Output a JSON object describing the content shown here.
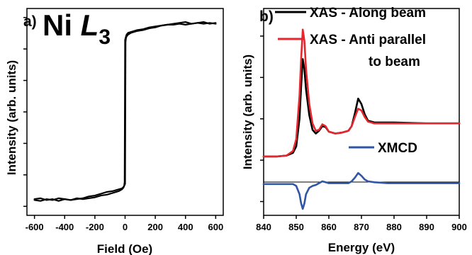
{
  "panel_a": {
    "panel_label": "a)",
    "title_main": "Ni ",
    "title_italic": "L",
    "title_sub": "3",
    "chart_data": {
      "type": "line",
      "xlabel": "Field (Oe)",
      "ylabel": "Intensity (arb. units)",
      "xlim": [
        -650,
        650
      ],
      "ylim": [
        -1.15,
        1.15
      ],
      "xticks": [
        -600,
        -400,
        -200,
        0,
        200,
        400,
        600
      ],
      "tick_labels": [
        "-600",
        "-400",
        "-200",
        "0",
        "200",
        "400",
        "600"
      ],
      "series": [
        {
          "color": "#000000",
          "x": [
            -600,
            -560,
            -520,
            -480,
            -440,
            -400,
            -360,
            -320,
            -280,
            -240,
            -200,
            -160,
            -120,
            -80,
            -40,
            -20,
            -8,
            0,
            3,
            6,
            10,
            20,
            40,
            80,
            120,
            160,
            200,
            240,
            280,
            320,
            360,
            400,
            440,
            480,
            520,
            560,
            600
          ],
          "y": [
            -0.98,
            -0.99,
            -0.97,
            -0.98,
            -0.96,
            -0.97,
            -0.98,
            -0.97,
            -0.96,
            -0.94,
            -0.93,
            -0.91,
            -0.89,
            -0.88,
            -0.86,
            -0.85,
            -0.83,
            -0.8,
            0.78,
            0.82,
            0.84,
            0.86,
            0.88,
            0.9,
            0.91,
            0.93,
            0.94,
            0.96,
            0.97,
            0.97,
            0.98,
            0.97,
            0.98,
            0.99,
            0.98,
            0.99,
            0.98
          ]
        },
        {
          "color": "#000000",
          "x": [
            600,
            560,
            520,
            480,
            440,
            400,
            360,
            320,
            280,
            240,
            200,
            160,
            120,
            80,
            40,
            20,
            10,
            6,
            3,
            0,
            -3,
            -6,
            -10,
            -20,
            -40,
            -80,
            -120,
            -160,
            -200,
            -240,
            -280,
            -320,
            -360,
            -400,
            -440,
            -480,
            -520,
            -560,
            -600
          ],
          "y": [
            0.99,
            0.98,
            1.0,
            0.99,
            0.98,
            1.0,
            0.99,
            0.98,
            0.97,
            0.96,
            0.95,
            0.94,
            0.92,
            0.91,
            0.89,
            0.88,
            0.86,
            0.84,
            0.82,
            0.8,
            -0.78,
            -0.82,
            -0.84,
            -0.86,
            -0.88,
            -0.9,
            -0.92,
            -0.93,
            -0.95,
            -0.96,
            -0.97,
            -0.96,
            -0.98,
            -0.97,
            -0.99,
            -0.97,
            -0.98,
            -0.96,
            -0.97
          ]
        }
      ]
    }
  },
  "panel_b": {
    "panel_label": "b)",
    "legend": {
      "xas_along_label": "XAS - Along beam",
      "xas_anti_line1": "XAS - Anti parallel",
      "xas_anti_line2": "to beam",
      "xmcd_label": "XMCD"
    },
    "chart_data": {
      "type": "line",
      "xlabel": "Energy (eV)",
      "ylabel": "Intensity (arb. units)",
      "xlim": [
        840,
        900
      ],
      "ylim": [
        -0.35,
        1.9
      ],
      "xticks": [
        840,
        850,
        860,
        870,
        880,
        890,
        900
      ],
      "tick_labels": [
        "840",
        "850",
        "860",
        "870",
        "880",
        "890",
        "900"
      ],
      "series": [
        {
          "name": "XAS - Along beam",
          "color": "#000000",
          "x": [
            840,
            844,
            847,
            849,
            850,
            851,
            851.5,
            852,
            852.5,
            853,
            854,
            855,
            856,
            857,
            858,
            859,
            860,
            862,
            864,
            866,
            867,
            868,
            869,
            870,
            871,
            872,
            874,
            876,
            880,
            890,
            900
          ],
          "y": [
            0.29,
            0.29,
            0.3,
            0.33,
            0.4,
            0.7,
            1.05,
            1.35,
            1.24,
            1.02,
            0.74,
            0.58,
            0.54,
            0.57,
            0.62,
            0.61,
            0.56,
            0.54,
            0.55,
            0.57,
            0.62,
            0.76,
            0.92,
            0.86,
            0.75,
            0.68,
            0.66,
            0.66,
            0.66,
            0.65,
            0.65
          ]
        },
        {
          "name": "XAS - Anti parallel to beam",
          "color": "#e5262c",
          "x": [
            840,
            844,
            847,
            849,
            850,
            851,
            851.5,
            852,
            852.5,
            853,
            854,
            855,
            856,
            857,
            858,
            859,
            860,
            862,
            864,
            866,
            867,
            868,
            869,
            870,
            871,
            872,
            874,
            876,
            880,
            890,
            900
          ],
          "y": [
            0.29,
            0.29,
            0.3,
            0.35,
            0.48,
            0.95,
            1.35,
            1.67,
            1.55,
            1.24,
            0.86,
            0.65,
            0.57,
            0.58,
            0.64,
            0.62,
            0.56,
            0.54,
            0.55,
            0.57,
            0.62,
            0.72,
            0.81,
            0.79,
            0.72,
            0.67,
            0.65,
            0.65,
            0.65,
            0.65,
            0.65
          ]
        },
        {
          "name": "XMCD",
          "color": "#2f55a4",
          "x": [
            840,
            846,
            849,
            850,
            851,
            851.5,
            852,
            852.5,
            853,
            854,
            855,
            856,
            857,
            858,
            859,
            860,
            862,
            866,
            867,
            868,
            869,
            870,
            871,
            872,
            874,
            878,
            890,
            900
          ],
          "y": [
            -0.01,
            -0.01,
            -0.01,
            -0.03,
            -0.12,
            -0.22,
            -0.28,
            -0.22,
            -0.12,
            -0.05,
            -0.03,
            -0.02,
            0.0,
            0.02,
            0.01,
            0.0,
            0.0,
            0.0,
            0.02,
            0.06,
            0.11,
            0.08,
            0.04,
            0.02,
            0.01,
            0.0,
            0.0,
            0.0
          ]
        }
      ]
    }
  }
}
